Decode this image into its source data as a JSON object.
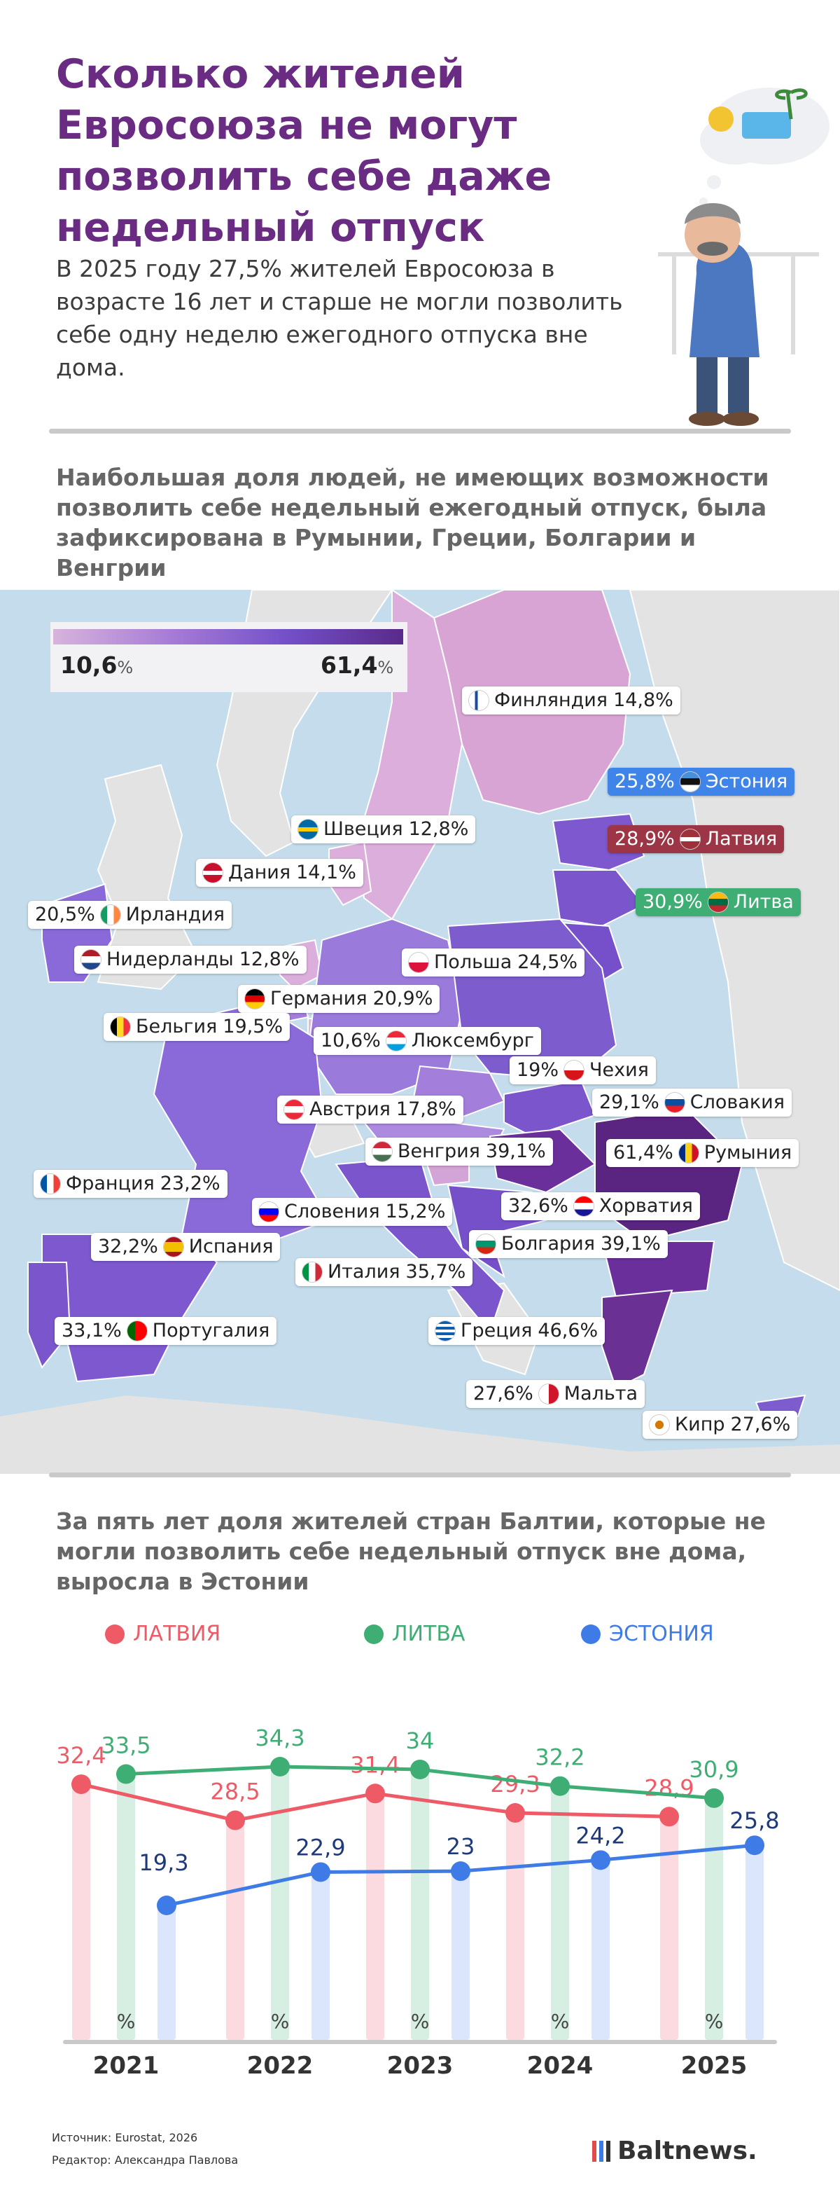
{
  "title": "Сколько жителей Евросоюза не могут позволить себе даже недельный отпуск",
  "lead": "В 2025 году 27,5% жителей Евросоюза в возрасте 16 лет и старше не могли позволить себе одну неделю ежегодного отпуска вне дома.",
  "map_section": {
    "heading": "Наибольшая доля людей, не имеющих возможности позволить себе недельный ежегодный отпуск, была зафиксирована в Румынии, Греции, Болгарии и Венгрии",
    "legend": {
      "min_value": "10,6",
      "max_value": "61,4",
      "unit": "%",
      "colors": [
        "#d7b3dc",
        "#a77cd6",
        "#7350c9",
        "#5a2a8a"
      ]
    },
    "labels": [
      {
        "country": "Финляндия",
        "value": "14,8%",
        "order": "name-first",
        "flag": "finland-flag-icon"
      },
      {
        "country": "Эстония",
        "value": "25,8%",
        "order": "value-first",
        "flag": "estonia-flag-icon",
        "highlight": "#3f84e8"
      },
      {
        "country": "Латвия",
        "value": "28,9%",
        "order": "value-first",
        "flag": "latvia-flag-icon",
        "highlight": "#9c3545"
      },
      {
        "country": "Литва",
        "value": "30,9%",
        "order": "value-first",
        "flag": "lithuania-flag-icon",
        "highlight": "#3fae74"
      },
      {
        "country": "Швеция",
        "value": "12,8%",
        "order": "name-first",
        "flag": "sweden-flag-icon"
      },
      {
        "country": "Дания",
        "value": "14,1%",
        "order": "name-first",
        "flag": "denmark-flag-icon"
      },
      {
        "country": "Ирландия",
        "value": "20,5%",
        "order": "value-first",
        "flag": "ireland-flag-icon"
      },
      {
        "country": "Нидерланды",
        "value": "12,8%",
        "order": "name-first",
        "flag": "netherlands-flag-icon"
      },
      {
        "country": "Польша",
        "value": "24,5%",
        "order": "name-first",
        "flag": "poland-flag-icon"
      },
      {
        "country": "Германия",
        "value": "20,9%",
        "order": "name-first",
        "flag": "germany-flag-icon"
      },
      {
        "country": "Бельгия",
        "value": "19,5%",
        "order": "name-first",
        "flag": "belgium-flag-icon"
      },
      {
        "country": "Люксембург",
        "value": "10,6%",
        "order": "value-first",
        "flag": "luxembourg-flag-icon"
      },
      {
        "country": "Чехия",
        "value": "19%",
        "order": "value-first",
        "flag": "czechia-flag-icon"
      },
      {
        "country": "Словакия",
        "value": "29,1%",
        "order": "value-first",
        "flag": "slovakia-flag-icon"
      },
      {
        "country": "Австрия",
        "value": "17,8%",
        "order": "name-first",
        "flag": "austria-flag-icon"
      },
      {
        "country": "Венгрия",
        "value": "39,1%",
        "order": "name-first",
        "flag": "hungary-flag-icon"
      },
      {
        "country": "Румыния",
        "value": "61,4%",
        "order": "value-first",
        "flag": "romania-flag-icon"
      },
      {
        "country": "Франция",
        "value": "23,2%",
        "order": "name-first",
        "flag": "france-flag-icon"
      },
      {
        "country": "Словения",
        "value": "15,2%",
        "order": "name-first",
        "flag": "slovenia-flag-icon"
      },
      {
        "country": "Хорватия",
        "value": "32,6%",
        "order": "value-first",
        "flag": "croatia-flag-icon"
      },
      {
        "country": "Испания",
        "value": "32,2%",
        "order": "value-first",
        "flag": "spain-flag-icon"
      },
      {
        "country": "Болгария",
        "value": "39,1%",
        "order": "name-first",
        "flag": "bulgaria-flag-icon"
      },
      {
        "country": "Италия",
        "value": "35,7%",
        "order": "name-first",
        "flag": "italy-flag-icon"
      },
      {
        "country": "Португалия",
        "value": "33,1%",
        "order": "value-first",
        "flag": "portugal-flag-icon"
      },
      {
        "country": "Греция",
        "value": "46,6%",
        "order": "name-first",
        "flag": "greece-flag-icon"
      },
      {
        "country": "Мальта",
        "value": "27,6%",
        "order": "value-first",
        "flag": "malta-flag-icon"
      },
      {
        "country": "Кипр",
        "value": "27,6%",
        "order": "name-first",
        "flag": "cyprus-flag-icon"
      }
    ]
  },
  "chart_section": {
    "heading": "За пять лет доля жителей стран Балтии, которые не могли позволить себе недельный отпуск вне дома, выросла в Эстонии"
  },
  "chart_data": {
    "type": "line",
    "x": [
      "2021",
      "2022",
      "2023",
      "2024",
      "2025"
    ],
    "unit_label": "%",
    "series": [
      {
        "name": "ЛАТВИЯ",
        "color": "#ee5b66",
        "values": [
          32.4,
          28.5,
          31.4,
          29.3,
          28.9
        ],
        "labels": [
          "32,4",
          "28,5",
          "31,4",
          "29,3",
          "28,9"
        ]
      },
      {
        "name": "ЛИТВА",
        "color": "#3fae74",
        "values": [
          33.5,
          34.3,
          34,
          32.2,
          30.9
        ],
        "labels": [
          "33,5",
          "34,3",
          "34",
          "32,2",
          "30,9"
        ]
      },
      {
        "name": "ЭСТОНИЯ",
        "color": "#3f7be6",
        "values": [
          19.3,
          22.9,
          23,
          24.2,
          25.8
        ],
        "labels": [
          "19,3",
          "22,9",
          "23",
          "24,2",
          "25,8"
        ]
      }
    ]
  },
  "footer": {
    "source": "Источник: Eurostat, 2026",
    "editor": "Редактор: Александра Павлова",
    "brand": "Baltnews."
  }
}
